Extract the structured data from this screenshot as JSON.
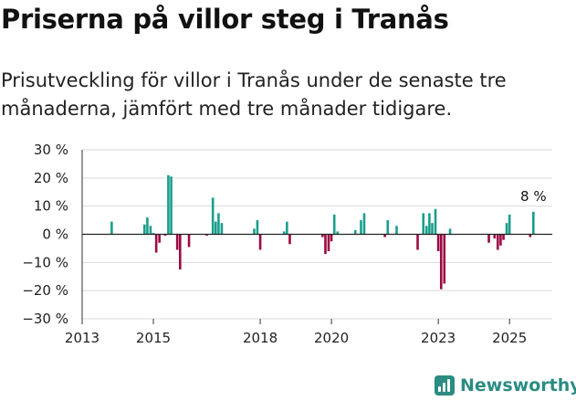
{
  "title": "Priserna på villor steg i Tranås",
  "subtitle": "Prisutveckling för villor i Tranås under de senaste tre månaderna, jämfört med tre månader tidigare.",
  "brand": {
    "name": "Newsworthy"
  },
  "colors": {
    "positive": "#1a9e8c",
    "negative": "#9c0a43",
    "grid": "#d9d9d9",
    "brand": "#2a8c82"
  },
  "chart_data": {
    "type": "bar",
    "xlim": [
      2013,
      2026.2
    ],
    "ylim": [
      -30,
      30
    ],
    "x_ticks": [
      {
        "value": 2013,
        "label": "2013"
      },
      {
        "value": 2015,
        "label": "2015"
      },
      {
        "value": 2018,
        "label": "2018"
      },
      {
        "value": 2020,
        "label": "2020"
      },
      {
        "value": 2023,
        "label": "2023"
      },
      {
        "value": 2025,
        "label": "2025"
      }
    ],
    "y_ticks": [
      {
        "value": 30,
        "label": "30 %"
      },
      {
        "value": 20,
        "label": "20 %"
      },
      {
        "value": 10,
        "label": "10 %"
      },
      {
        "value": 0,
        "label": "0 %"
      },
      {
        "value": -10,
        "label": "−10 %"
      },
      {
        "value": -20,
        "label": "−20 %"
      },
      {
        "value": -30,
        "label": "−30 %"
      }
    ],
    "grid": true,
    "points": [
      {
        "x": 2013.83,
        "y": 4.5
      },
      {
        "x": 2014.75,
        "y": 3.5
      },
      {
        "x": 2014.83,
        "y": 6
      },
      {
        "x": 2014.92,
        "y": 3
      },
      {
        "x": 2015.0,
        "y": 0.5
      },
      {
        "x": 2015.08,
        "y": -6.5
      },
      {
        "x": 2015.17,
        "y": -3
      },
      {
        "x": 2015.33,
        "y": -0.5
      },
      {
        "x": 2015.42,
        "y": 21
      },
      {
        "x": 2015.5,
        "y": 20.5
      },
      {
        "x": 2015.67,
        "y": -5.5
      },
      {
        "x": 2015.75,
        "y": -12.5
      },
      {
        "x": 2016.0,
        "y": -4.5
      },
      {
        "x": 2016.5,
        "y": -0.5
      },
      {
        "x": 2016.67,
        "y": 13
      },
      {
        "x": 2016.75,
        "y": 4.5
      },
      {
        "x": 2016.83,
        "y": 7.5
      },
      {
        "x": 2016.92,
        "y": 4
      },
      {
        "x": 2017.83,
        "y": 2
      },
      {
        "x": 2017.92,
        "y": 5
      },
      {
        "x": 2018.0,
        "y": -5.5
      },
      {
        "x": 2018.67,
        "y": 1
      },
      {
        "x": 2018.75,
        "y": 4.5
      },
      {
        "x": 2018.83,
        "y": -3.5
      },
      {
        "x": 2019.75,
        "y": -1
      },
      {
        "x": 2019.83,
        "y": -7
      },
      {
        "x": 2019.92,
        "y": -6
      },
      {
        "x": 2020.0,
        "y": -2.5
      },
      {
        "x": 2020.08,
        "y": 7
      },
      {
        "x": 2020.17,
        "y": 1
      },
      {
        "x": 2020.67,
        "y": 1.5
      },
      {
        "x": 2020.83,
        "y": 5
      },
      {
        "x": 2020.92,
        "y": 7.5
      },
      {
        "x": 2021.5,
        "y": -1
      },
      {
        "x": 2021.58,
        "y": 5
      },
      {
        "x": 2021.83,
        "y": 3
      },
      {
        "x": 2022.42,
        "y": -5.5
      },
      {
        "x": 2022.58,
        "y": 7.5
      },
      {
        "x": 2022.67,
        "y": 3
      },
      {
        "x": 2022.75,
        "y": 7.5
      },
      {
        "x": 2022.83,
        "y": 4
      },
      {
        "x": 2022.92,
        "y": 9
      },
      {
        "x": 2023.0,
        "y": -6
      },
      {
        "x": 2023.08,
        "y": -19.5
      },
      {
        "x": 2023.17,
        "y": -17.5
      },
      {
        "x": 2023.33,
        "y": 2
      },
      {
        "x": 2024.42,
        "y": -3
      },
      {
        "x": 2024.58,
        "y": -1.5
      },
      {
        "x": 2024.67,
        "y": -5.5
      },
      {
        "x": 2024.75,
        "y": -4
      },
      {
        "x": 2024.83,
        "y": -2
      },
      {
        "x": 2024.92,
        "y": 4
      },
      {
        "x": 2025.0,
        "y": 7
      },
      {
        "x": 2025.58,
        "y": -1
      },
      {
        "x": 2025.67,
        "y": 8
      }
    ],
    "annotation": {
      "x": 2025.67,
      "y": 8,
      "label": "8 %"
    }
  }
}
